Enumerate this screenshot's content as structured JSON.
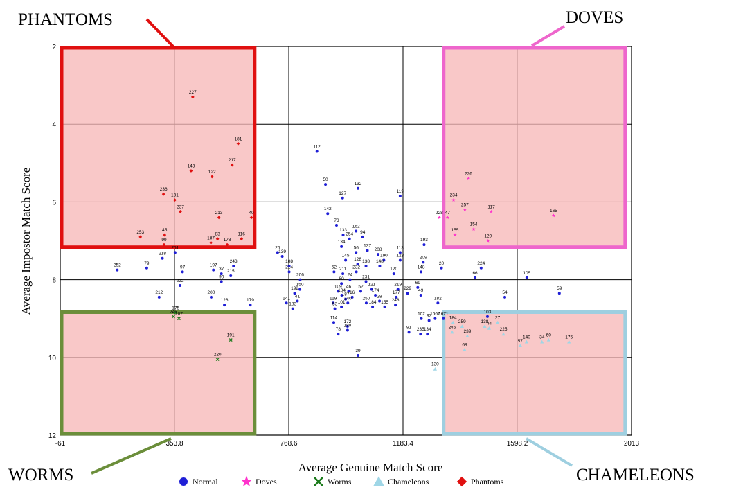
{
  "chart_data": {
    "type": "scatter",
    "title": "",
    "xlabel": "Average Genuine Match Score",
    "ylabel": "Average Impostor Match Score",
    "xlim": [
      -61,
      2013
    ],
    "ylim": [
      12,
      2
    ],
    "y_inverted": true,
    "x_ticks": [
      "-61",
      "353.8",
      "768.6",
      "1183.4",
      "1598.2",
      "2013"
    ],
    "y_ticks": [
      "2",
      "4",
      "6",
      "8",
      "10",
      "12"
    ],
    "grid": true,
    "legend_position": "bottom",
    "legend": [
      {
        "name": "Normal",
        "color": "#1f1fd6",
        "marker": "circle"
      },
      {
        "name": "Doves",
        "color": "#ff33cc",
        "marker": "star"
      },
      {
        "name": "Worms",
        "color": "#1a7a1a",
        "marker": "x"
      },
      {
        "name": "Chameleons",
        "color": "#9fd6e6",
        "marker": "triangle"
      },
      {
        "name": "Phantoms",
        "color": "#e01010",
        "marker": "diamond"
      }
    ],
    "regions": [
      {
        "label": "PHANTOMS",
        "x": [
          -61,
          650
        ],
        "y": [
          2,
          7.2
        ],
        "color": "#e01010"
      },
      {
        "label": "DOVES",
        "x": [
          1326,
          1995
        ],
        "y": [
          2,
          7.2
        ],
        "color": "#ee66cc"
      },
      {
        "label": "WORMS",
        "x": [
          -61,
          650
        ],
        "y": [
          8.8,
          12
        ],
        "color": "#6b8e3a"
      },
      {
        "label": "CHAMELEONS",
        "x": [
          1326,
          1995
        ],
        "y": [
          8.8,
          12
        ],
        "color": "#9ecfe0"
      }
    ],
    "series": [
      {
        "name": "Phantoms",
        "points": [
          {
            "id": "227",
            "x": 420,
            "y": 3.3
          },
          {
            "id": "181",
            "x": 585,
            "y": 4.5
          },
          {
            "id": "217",
            "x": 563,
            "y": 5.05
          },
          {
            "id": "143",
            "x": 414,
            "y": 5.2
          },
          {
            "id": "122",
            "x": 490,
            "y": 5.35
          },
          {
            "id": "236",
            "x": 314,
            "y": 5.8
          },
          {
            "id": "131",
            "x": 355,
            "y": 5.95
          },
          {
            "id": "237",
            "x": 375,
            "y": 6.25
          },
          {
            "id": "213",
            "x": 515,
            "y": 6.4
          },
          {
            "id": "40",
            "x": 633,
            "y": 6.4
          },
          {
            "id": "253",
            "x": 230,
            "y": 6.9
          },
          {
            "id": "45",
            "x": 318,
            "y": 6.85
          },
          {
            "id": "83",
            "x": 510,
            "y": 6.95
          },
          {
            "id": "116",
            "x": 597,
            "y": 6.95
          },
          {
            "id": "99",
            "x": 316,
            "y": 7.1
          },
          {
            "id": "187",
            "x": 486,
            "y": 7.05
          },
          {
            "id": "178",
            "x": 545,
            "y": 7.1
          }
        ]
      },
      {
        "name": "Doves",
        "points": [
          {
            "id": "226",
            "x": 1421,
            "y": 5.4
          },
          {
            "id": "234",
            "x": 1367,
            "y": 5.95
          },
          {
            "id": "257",
            "x": 1408,
            "y": 6.2
          },
          {
            "id": "117",
            "x": 1504,
            "y": 6.25
          },
          {
            "id": "165",
            "x": 1730,
            "y": 6.35
          },
          {
            "id": "228",
            "x": 1315,
            "y": 6.4
          },
          {
            "id": "47",
            "x": 1345,
            "y": 6.4
          },
          {
            "id": "154",
            "x": 1440,
            "y": 6.7
          },
          {
            "id": "155",
            "x": 1372,
            "y": 6.85
          },
          {
            "id": "129",
            "x": 1492,
            "y": 7.0
          }
        ]
      },
      {
        "name": "Worms",
        "points": [
          {
            "id": "175",
            "x": 358,
            "y": 8.85
          },
          {
            "id": "245",
            "x": 350,
            "y": 8.95
          },
          {
            "id": "207",
            "x": 370,
            "y": 9.0
          },
          {
            "id": "191",
            "x": 558,
            "y": 9.55
          },
          {
            "id": "220",
            "x": 510,
            "y": 10.05
          }
        ]
      },
      {
        "name": "Chameleons",
        "points": [
          {
            "id": "184",
            "x": 1365,
            "y": 9.1
          },
          {
            "id": "259",
            "x": 1398,
            "y": 9.2
          },
          {
            "id": "27",
            "x": 1527,
            "y": 9.1
          },
          {
            "id": "225",
            "x": 1548,
            "y": 9.4
          },
          {
            "id": "246",
            "x": 1362,
            "y": 9.35
          },
          {
            "id": "138",
            "x": 1480,
            "y": 9.2
          },
          {
            "id": "44",
            "x": 1496,
            "y": 9.25
          },
          {
            "id": "239",
            "x": 1417,
            "y": 9.45
          },
          {
            "id": "140",
            "x": 1632,
            "y": 9.6
          },
          {
            "id": "34",
            "x": 1688,
            "y": 9.6
          },
          {
            "id": "60",
            "x": 1712,
            "y": 9.55
          },
          {
            "id": "176",
            "x": 1786,
            "y": 9.6
          },
          {
            "id": "57",
            "x": 1609,
            "y": 9.7
          },
          {
            "id": "68",
            "x": 1407,
            "y": 9.8
          },
          {
            "id": "130",
            "x": 1300,
            "y": 10.3
          }
        ]
      },
      {
        "name": "Normal",
        "points": [
          {
            "id": "112",
            "x": 871,
            "y": 4.7
          },
          {
            "id": "50",
            "x": 902,
            "y": 5.55
          },
          {
            "id": "132",
            "x": 1020,
            "y": 5.65
          },
          {
            "id": "127",
            "x": 964,
            "y": 5.9
          },
          {
            "id": "119",
            "x": 1173,
            "y": 5.85
          },
          {
            "id": "142",
            "x": 910,
            "y": 6.3
          },
          {
            "id": "73",
            "x": 942,
            "y": 6.6
          },
          {
            "id": "162",
            "x": 1013,
            "y": 6.75
          },
          {
            "id": "133",
            "x": 966,
            "y": 6.85
          },
          {
            "id": "94",
            "x": 1037,
            "y": 6.9
          },
          {
            "id": "254",
            "x": 989,
            "y": 6.95
          },
          {
            "id": "134",
            "x": 960,
            "y": 7.15
          },
          {
            "id": "193",
            "x": 1260,
            "y": 7.1
          },
          {
            "id": "137",
            "x": 1054,
            "y": 7.25
          },
          {
            "id": "208",
            "x": 1093,
            "y": 7.35
          },
          {
            "id": "113",
            "x": 1173,
            "y": 7.3
          },
          {
            "id": "56",
            "x": 1013,
            "y": 7.3
          },
          {
            "id": "25",
            "x": 728,
            "y": 7.3
          },
          {
            "id": "139",
            "x": 745,
            "y": 7.4
          },
          {
            "id": "145",
            "x": 975,
            "y": 7.5
          },
          {
            "id": "190",
            "x": 1114,
            "y": 7.5
          },
          {
            "id": "123",
            "x": 1173,
            "y": 7.5
          },
          {
            "id": "209",
            "x": 1257,
            "y": 7.55
          },
          {
            "id": "20",
            "x": 1323,
            "y": 7.7
          },
          {
            "id": "224",
            "x": 1467,
            "y": 7.7
          },
          {
            "id": "128",
            "x": 1019,
            "y": 7.6
          },
          {
            "id": "148",
            "x": 1099,
            "y": 7.65
          },
          {
            "id": "138",
            "x": 1049,
            "y": 7.65
          },
          {
            "id": "188",
            "x": 770,
            "y": 7.65
          },
          {
            "id": "97",
            "x": 383,
            "y": 7.8
          },
          {
            "id": "197",
            "x": 495,
            "y": 7.75
          },
          {
            "id": "243",
            "x": 568,
            "y": 7.65
          },
          {
            "id": "37",
            "x": 524,
            "y": 7.85
          },
          {
            "id": "214",
            "x": 770,
            "y": 7.8
          },
          {
            "id": "252",
            "x": 146,
            "y": 7.75
          },
          {
            "id": "79",
            "x": 253,
            "y": 7.7
          },
          {
            "id": "218",
            "x": 310,
            "y": 7.45
          },
          {
            "id": "251",
            "x": 356,
            "y": 7.3
          },
          {
            "id": "62",
            "x": 933,
            "y": 7.8
          },
          {
            "id": "211",
            "x": 965,
            "y": 7.85
          },
          {
            "id": "232",
            "x": 1014,
            "y": 7.8
          },
          {
            "id": "120",
            "x": 1150,
            "y": 7.85
          },
          {
            "id": "148",
            "x": 1249,
            "y": 7.8
          },
          {
            "id": "66",
            "x": 1445,
            "y": 7.95
          },
          {
            "id": "105",
            "x": 1633,
            "y": 7.95
          },
          {
            "id": "215",
            "x": 558,
            "y": 7.9
          },
          {
            "id": "222",
            "x": 374,
            "y": 8.15
          },
          {
            "id": "206",
            "x": 810,
            "y": 8.0
          },
          {
            "id": "24",
            "x": 991,
            "y": 8.0
          },
          {
            "id": "231",
            "x": 1049,
            "y": 8.05
          },
          {
            "id": "80",
            "x": 960,
            "y": 8.1
          },
          {
            "id": "90",
            "x": 524,
            "y": 8.05
          },
          {
            "id": "150",
            "x": 809,
            "y": 8.25
          },
          {
            "id": "109",
            "x": 948,
            "y": 8.3
          },
          {
            "id": "46",
            "x": 986,
            "y": 8.3
          },
          {
            "id": "52",
            "x": 1030,
            "y": 8.3
          },
          {
            "id": "121",
            "x": 1070,
            "y": 8.25
          },
          {
            "id": "219",
            "x": 1165,
            "y": 8.25
          },
          {
            "id": "229",
            "x": 1200,
            "y": 8.35
          },
          {
            "id": "69",
            "x": 1237,
            "y": 8.2
          },
          {
            "id": "200",
            "x": 487,
            "y": 8.45
          },
          {
            "id": "212",
            "x": 298,
            "y": 8.45
          },
          {
            "id": "192",
            "x": 790,
            "y": 8.35
          },
          {
            "id": "104",
            "x": 961,
            "y": 8.4
          },
          {
            "id": "16",
            "x": 999,
            "y": 8.45
          },
          {
            "id": "174",
            "x": 1083,
            "y": 8.4
          },
          {
            "id": "177",
            "x": 1159,
            "y": 8.45
          },
          {
            "id": "49",
            "x": 1248,
            "y": 8.4
          },
          {
            "id": "54",
            "x": 1553,
            "y": 8.45
          },
          {
            "id": "59",
            "x": 1751,
            "y": 8.35
          },
          {
            "id": "141",
            "x": 760,
            "y": 8.6
          },
          {
            "id": "41",
            "x": 800,
            "y": 8.55
          },
          {
            "id": "119",
            "x": 930,
            "y": 8.6
          },
          {
            "id": "187",
            "x": 975,
            "y": 8.5
          },
          {
            "id": "240",
            "x": 983,
            "y": 8.6
          },
          {
            "id": "250",
            "x": 1050,
            "y": 8.6
          },
          {
            "id": "28",
            "x": 1098,
            "y": 8.55
          },
          {
            "id": "182",
            "x": 1310,
            "y": 8.6
          },
          {
            "id": "126",
            "x": 535,
            "y": 8.65
          },
          {
            "id": "179",
            "x": 629,
            "y": 8.65
          },
          {
            "id": "183",
            "x": 783,
            "y": 8.75
          },
          {
            "id": "53",
            "x": 936,
            "y": 8.75
          },
          {
            "id": "101",
            "x": 960,
            "y": 8.7
          },
          {
            "id": "184",
            "x": 1073,
            "y": 8.7
          },
          {
            "id": "155",
            "x": 1117,
            "y": 8.7
          },
          {
            "id": "248",
            "x": 1156,
            "y": 8.65
          },
          {
            "id": "102",
            "x": 1250,
            "y": 9.0
          },
          {
            "id": "92",
            "x": 1278,
            "y": 9.05
          },
          {
            "id": "1567",
            "x": 1300,
            "y": 9.0
          },
          {
            "id": "1671",
            "x": 1330,
            "y": 9.0
          },
          {
            "id": "103",
            "x": 1490,
            "y": 8.95
          },
          {
            "id": "114",
            "x": 932,
            "y": 9.1
          },
          {
            "id": "172",
            "x": 982,
            "y": 9.2
          },
          {
            "id": "180",
            "x": 982,
            "y": 9.3
          },
          {
            "id": "78",
            "x": 948,
            "y": 9.4
          },
          {
            "id": "91",
            "x": 1205,
            "y": 9.35
          },
          {
            "id": "235",
            "x": 1247,
            "y": 9.4
          },
          {
            "id": "134",
            "x": 1272,
            "y": 9.4
          },
          {
            "id": "39",
            "x": 1020,
            "y": 9.95
          }
        ]
      }
    ]
  },
  "callouts": {
    "phantoms": "PHANTOMS",
    "doves": "DOVES",
    "worms": "WORMS",
    "chameleons": "CHAMELEONS"
  }
}
